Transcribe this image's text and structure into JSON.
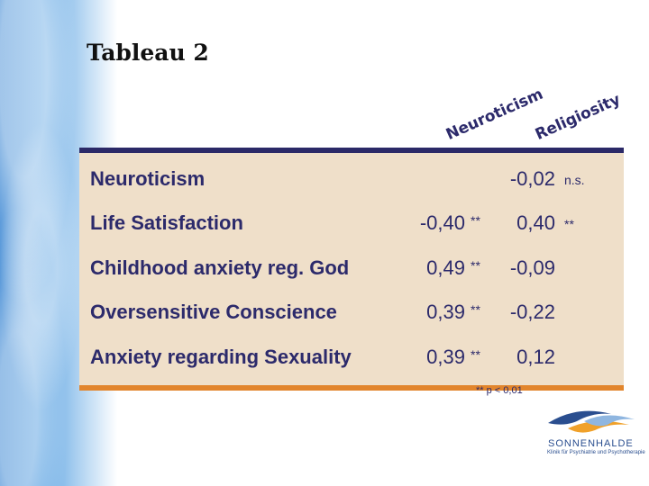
{
  "slide": {
    "title": "Tableau 2"
  },
  "columns": {
    "neuroticism": "Neuroticism",
    "religiosity": "Religiosity"
  },
  "rows": [
    {
      "label": "Neuroticism",
      "neuroticism": "",
      "neuroticism_sig": "",
      "religiosity": "-0,02",
      "religiosity_sig": "n.s."
    },
    {
      "label": "Life Satisfaction",
      "neuroticism": "-0,40",
      "neuroticism_sig": "**",
      "religiosity": "0,40",
      "religiosity_sig": "**"
    },
    {
      "label": "Childhood anxiety reg. God",
      "neuroticism": "0,49",
      "neuroticism_sig": "**",
      "religiosity": "-0,09",
      "religiosity_sig": ""
    },
    {
      "label": "Oversensitive Conscience",
      "neuroticism": "0,39",
      "neuroticism_sig": "**",
      "religiosity": "-0,22",
      "religiosity_sig": ""
    },
    {
      "label": "Anxiety regarding Sexuality",
      "neuroticism": "0,39",
      "neuroticism_sig": "**",
      "religiosity": "0,12",
      "religiosity_sig": ""
    }
  ],
  "footnote": "** p < 0,01",
  "logo": {
    "name": "SONNENHALDE",
    "subtitle": "Klinik für Psychiatrie und Psychotherapie"
  },
  "colors": {
    "text": "#2c2a6b",
    "panel": "#efdfc9",
    "top_rule": "#2b2967",
    "bottom_rule": "#e2852c"
  }
}
